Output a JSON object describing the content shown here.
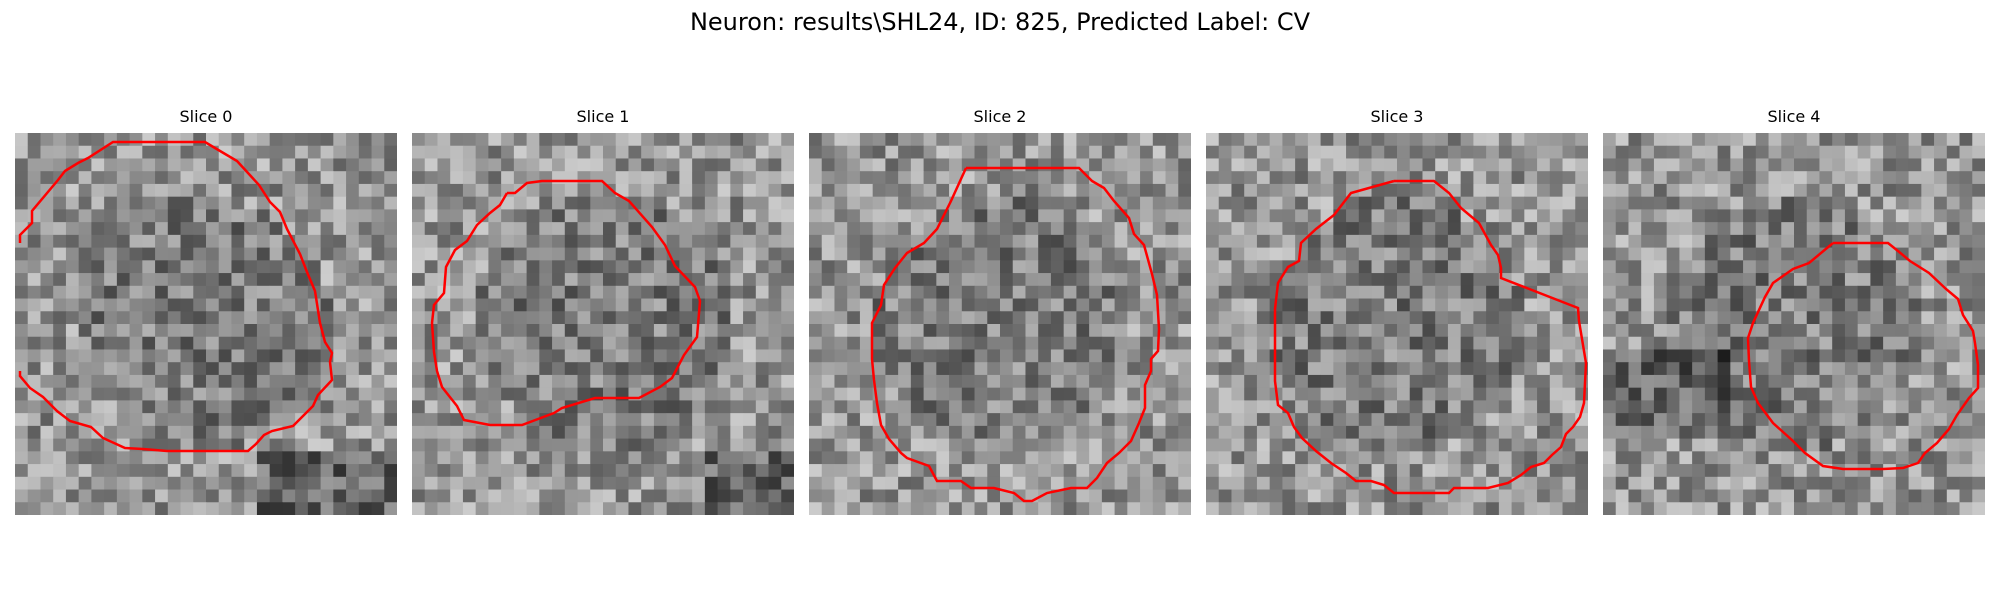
{
  "figure": {
    "title": "Neuron: results\\SHL24, ID: 825, Predicted Label: CV"
  },
  "colors": {
    "contour": "#ff0000",
    "background": "#ffffff"
  },
  "panels": [
    {
      "title": "Slice 0"
    },
    {
      "title": "Slice 1"
    },
    {
      "title": "Slice 2"
    },
    {
      "title": "Slice 3"
    },
    {
      "title": "Slice 4"
    }
  ]
}
